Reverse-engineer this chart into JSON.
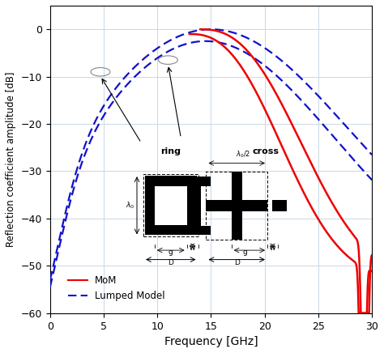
{
  "xlabel": "Frequency [GHz]",
  "ylabel": "Reflection coefficient amplitude [dB]",
  "xlim": [
    0,
    30
  ],
  "ylim": [
    -60,
    5
  ],
  "yticks": [
    0,
    -10,
    -20,
    -30,
    -40,
    -50,
    -60
  ],
  "xticks": [
    0,
    5,
    10,
    15,
    20,
    25,
    30
  ],
  "mom_color": "#ee0000",
  "lumped_color": "#1111cc",
  "background": "#ffffff",
  "legend_mom": "MoM",
  "legend_lumped": "Lumped Model",
  "grid_color": "#c8d8e8"
}
